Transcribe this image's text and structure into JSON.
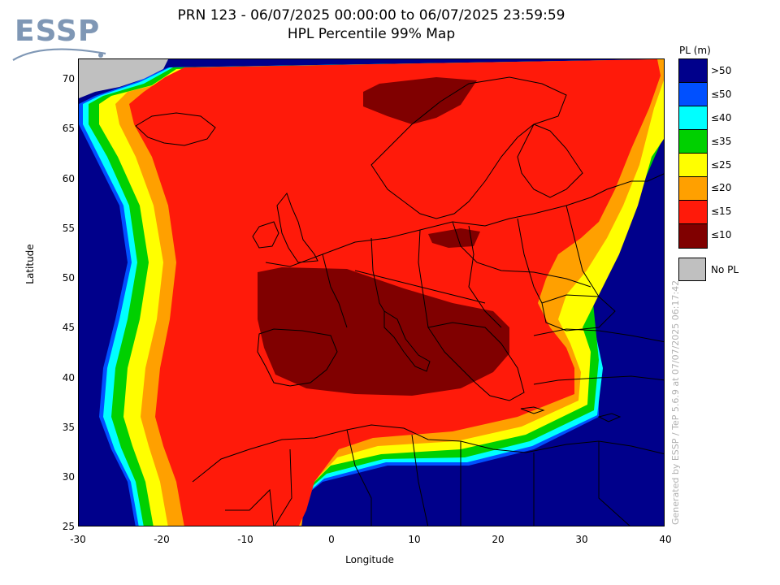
{
  "logo": {
    "text": "ESSP",
    "color": "#7f97b5"
  },
  "title": {
    "line1": "PRN 123 - 06/07/2025 00:00:00 to 06/07/2025 23:59:59",
    "line2": "HPL Percentile 99% Map"
  },
  "axes": {
    "xlabel": "Longitude",
    "ylabel": "Latitude",
    "xticks": [
      "-30",
      "-20",
      "-10",
      "0",
      "10",
      "20",
      "30",
      "40"
    ],
    "yticks": [
      "70",
      "65",
      "60",
      "55",
      "50",
      "45",
      "40",
      "35",
      "30",
      "25"
    ],
    "xlim": [
      -30,
      40
    ],
    "ylim": [
      25,
      72
    ]
  },
  "legend": {
    "title": "PL (m)",
    "classes": [
      {
        "label": ">50",
        "color": "#00008b"
      },
      {
        "label": "≤50",
        "color": "#0050ff"
      },
      {
        "label": "≤40",
        "color": "#00ffff"
      },
      {
        "label": "≤35",
        "color": "#00d000"
      },
      {
        "label": "≤25",
        "color": "#ffff00"
      },
      {
        "label": "≤20",
        "color": "#ffa000"
      },
      {
        "label": "≤15",
        "color": "#ff1a0a"
      },
      {
        "label": "≤10",
        "color": "#800000"
      }
    ],
    "no_pl": {
      "label": "No PL",
      "color": "#c0c0c0"
    }
  },
  "sidenote": "Generated by ESSP / TeP 5.6.9 at 07/07/2025 06:17:42"
}
